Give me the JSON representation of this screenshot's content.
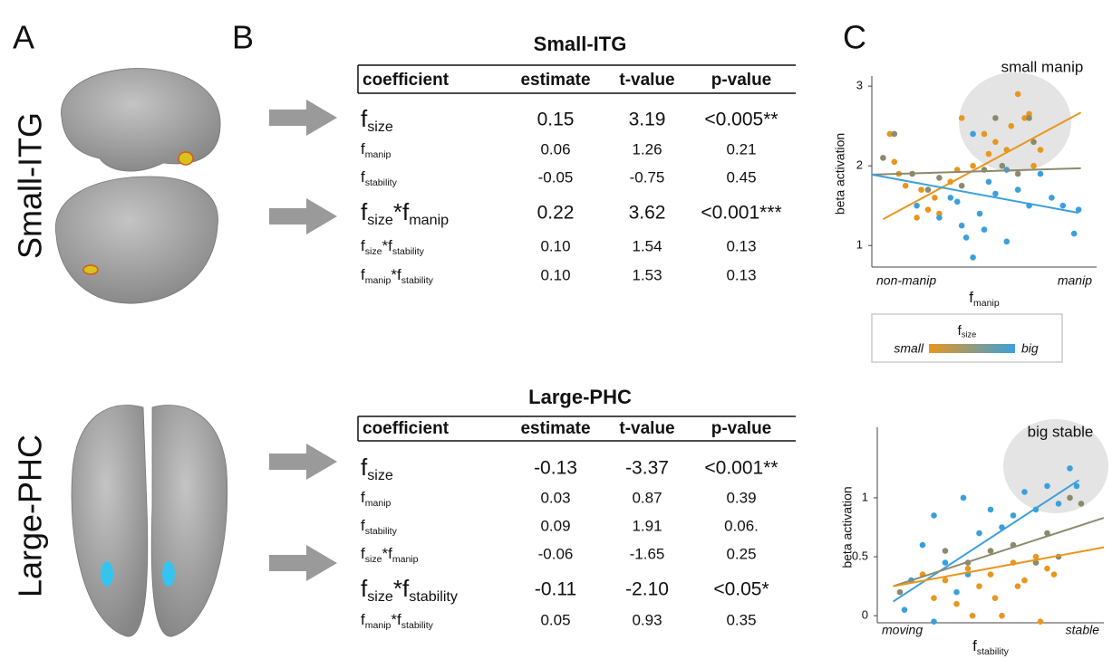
{
  "panels": [
    "A",
    "B",
    "C"
  ],
  "regions": [
    "Small-ITG",
    "Large-PHC"
  ],
  "tables": [
    {
      "title": "Small-ITG",
      "header": [
        "coefficient",
        "estimate",
        "t-value",
        "p-value"
      ],
      "rows": [
        {
          "coef": [
            {
              "t": "f",
              "sub": "size"
            }
          ],
          "emphasis": true,
          "cells": [
            "0.15",
            "3.19",
            "<0.005**"
          ]
        },
        {
          "coef": [
            {
              "t": "f",
              "sub": "manip"
            }
          ],
          "emphasis": false,
          "cells": [
            "0.06",
            "1.26",
            "0.21"
          ]
        },
        {
          "coef": [
            {
              "t": "f",
              "sub": "stability"
            }
          ],
          "emphasis": false,
          "cells": [
            "-0.05",
            "-0.75",
            "0.45"
          ]
        },
        {
          "coef": [
            {
              "t": "f",
              "sub": "size"
            },
            {
              "t": "*f",
              "sub": "manip"
            }
          ],
          "emphasis": true,
          "cells": [
            "0.22",
            "3.62",
            "<0.001***"
          ]
        },
        {
          "coef": [
            {
              "t": "f",
              "sub": "size"
            },
            {
              "t": "*f",
              "sub": "stability"
            }
          ],
          "emphasis": false,
          "cells": [
            "0.10",
            "1.54",
            "0.13"
          ]
        },
        {
          "coef": [
            {
              "t": "f",
              "sub": "manip"
            },
            {
              "t": "*f",
              "sub": "stability"
            }
          ],
          "emphasis": false,
          "cells": [
            "0.10",
            "1.53",
            "0.13"
          ]
        }
      ]
    },
    {
      "title": "Large-PHC",
      "header": [
        "coefficient",
        "estimate",
        "t-value",
        "p-value"
      ],
      "rows": [
        {
          "coef": [
            {
              "t": "f",
              "sub": "size"
            }
          ],
          "emphasis": true,
          "cells": [
            "-0.13",
            "-3.37",
            "<0.001**"
          ]
        },
        {
          "coef": [
            {
              "t": "f",
              "sub": "manip"
            }
          ],
          "emphasis": false,
          "cells": [
            "0.03",
            "0.87",
            "0.39"
          ]
        },
        {
          "coef": [
            {
              "t": "f",
              "sub": "stability"
            }
          ],
          "emphasis": false,
          "cells": [
            "0.09",
            "1.91",
            "0.06."
          ]
        },
        {
          "coef": [
            {
              "t": "f",
              "sub": "size"
            },
            {
              "t": "*f",
              "sub": "manip"
            }
          ],
          "emphasis": false,
          "cells": [
            "-0.06",
            "-1.65",
            "0.25"
          ]
        },
        {
          "coef": [
            {
              "t": "f",
              "sub": "size"
            },
            {
              "t": "*f",
              "sub": "stability"
            }
          ],
          "emphasis": true,
          "cells": [
            "-0.11",
            "-2.10",
            "<0.05*"
          ]
        },
        {
          "coef": [
            {
              "t": "f",
              "sub": "manip"
            },
            {
              "t": "*f",
              "sub": "stability"
            }
          ],
          "emphasis": false,
          "cells": [
            "0.05",
            "0.93",
            "0.35"
          ]
        }
      ]
    }
  ],
  "chart_data": [
    {
      "type": "scatter",
      "ylabel": "beta activation",
      "xlabel": {
        "t": "f",
        "sub": "manip"
      },
      "x_end_labels": [
        "non-manip",
        "manip"
      ],
      "annotation": "small manip",
      "xlim": [
        0,
        1
      ],
      "ylim": [
        0.73,
        3.07
      ],
      "yticks": [
        1,
        2,
        3
      ],
      "series": [
        {
          "color": "#e8961e",
          "x": [
            0.1,
            0.12,
            0.15,
            0.2,
            0.22,
            0.25,
            0.28,
            0.3,
            0.35,
            0.38,
            0.45,
            0.5,
            0.52,
            0.55,
            0.6,
            0.62,
            0.65,
            0.68,
            0.7,
            0.72,
            0.75,
            0.08,
            0.4
          ],
          "values": [
            2.05,
            1.9,
            1.75,
            1.35,
            1.7,
            1.45,
            1.6,
            1.4,
            1.8,
            1.95,
            2.0,
            2.4,
            2.15,
            2.3,
            2.2,
            2.5,
            2.9,
            2.6,
            2.65,
            2.0,
            2.2,
            2.4,
            2.6
          ]
        },
        {
          "color": "#8c8a6c",
          "x": [
            0.05,
            0.1,
            0.18,
            0.25,
            0.3,
            0.4,
            0.5,
            0.58,
            0.65,
            0.7,
            0.55,
            0.72
          ],
          "values": [
            2.1,
            2.4,
            1.9,
            1.7,
            1.85,
            1.75,
            1.95,
            2.0,
            1.9,
            2.6,
            2.6,
            2.3
          ]
        },
        {
          "color": "#3aa0dc",
          "x": [
            0.2,
            0.3,
            0.35,
            0.38,
            0.4,
            0.42,
            0.45,
            0.48,
            0.5,
            0.52,
            0.55,
            0.6,
            0.65,
            0.7,
            0.75,
            0.8,
            0.85,
            0.9,
            0.92,
            0.45,
            0.6
          ],
          "values": [
            1.5,
            1.35,
            1.6,
            1.55,
            1.25,
            1.1,
            0.85,
            1.4,
            1.2,
            1.8,
            1.65,
            1.95,
            1.7,
            1.5,
            1.9,
            1.6,
            1.5,
            1.15,
            1.45,
            2.4,
            1.05
          ]
        }
      ],
      "fit_lines": [
        {
          "color": "#e8961e",
          "x": [
            0.05,
            0.93
          ],
          "values": [
            1.33,
            2.67
          ]
        },
        {
          "color": "#8c8a6c",
          "x": [
            0,
            0.93
          ],
          "values": [
            1.89,
            1.97
          ]
        },
        {
          "color": "#3aa0dc",
          "x": [
            0,
            0.92
          ],
          "values": [
            1.89,
            1.41
          ]
        }
      ],
      "colorbar": {
        "title": {
          "t": "f",
          "sub": "size"
        },
        "low": "small",
        "high": "big",
        "colors": [
          "#e8961e",
          "#3aa0dc"
        ]
      }
    },
    {
      "type": "scatter",
      "ylabel": "beta activation",
      "xlabel": {
        "t": "f",
        "sub": "stability"
      },
      "x_end_labels": [
        "moving",
        "stable"
      ],
      "annotation": "big stable",
      "xlim": [
        0,
        1
      ],
      "ylim": [
        -0.06,
        1.56
      ],
      "yticks": [
        0,
        0.5,
        1
      ],
      "series": [
        {
          "color": "#e8961e",
          "x": [
            0.2,
            0.25,
            0.3,
            0.35,
            0.4,
            0.42,
            0.45,
            0.5,
            0.52,
            0.55,
            0.6,
            0.62,
            0.65,
            0.7,
            0.75,
            0.78,
            0.72
          ],
          "values": [
            0.35,
            0.15,
            0.3,
            0.1,
            0.4,
            0.0,
            0.25,
            0.35,
            0.15,
            0.0,
            0.45,
            0.25,
            0.3,
            0.5,
            0.4,
            0.35,
            -0.05
          ]
        },
        {
          "color": "#8c8a6c",
          "x": [
            0.1,
            0.3,
            0.4,
            0.5,
            0.6,
            0.7,
            0.75,
            0.8,
            0.85,
            0.9
          ],
          "values": [
            0.2,
            0.55,
            0.45,
            0.55,
            0.6,
            0.45,
            0.7,
            0.5,
            1.0,
            0.95
          ]
        },
        {
          "color": "#3aa0dc",
          "x": [
            0.12,
            0.15,
            0.2,
            0.25,
            0.3,
            0.35,
            0.4,
            0.45,
            0.5,
            0.55,
            0.6,
            0.65,
            0.7,
            0.75,
            0.8,
            0.85,
            0.88,
            0.38,
            0.25
          ],
          "values": [
            0.05,
            0.3,
            0.6,
            0.85,
            0.45,
            0.2,
            0.35,
            0.7,
            0.9,
            0.75,
            0.85,
            1.05,
            0.9,
            1.1,
            0.95,
            1.25,
            1.1,
            1.0,
            -0.05
          ]
        }
      ],
      "fit_lines": [
        {
          "color": "#3aa0dc",
          "x": [
            0.07,
            0.89
          ],
          "values": [
            0.12,
            1.15
          ]
        },
        {
          "color": "#8c8a6c",
          "x": [
            0.07,
            1
          ],
          "values": [
            0.25,
            0.83
          ]
        },
        {
          "color": "#e8961e",
          "x": [
            0.07,
            1
          ],
          "values": [
            0.25,
            0.58
          ]
        }
      ]
    }
  ]
}
